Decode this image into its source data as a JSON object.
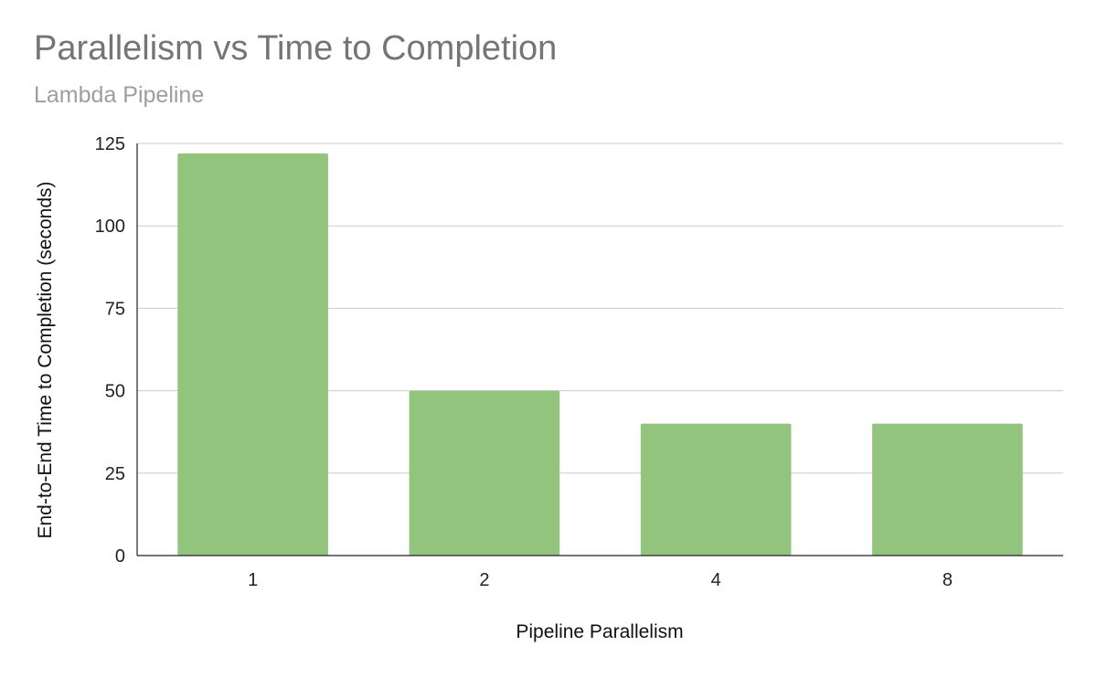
{
  "chart_data": {
    "type": "bar",
    "title": "Parallelism vs Time to Completion",
    "subtitle": "Lambda Pipeline",
    "xlabel": "Pipeline Parallelism",
    "ylabel": "End-to-End Time to Completion (seconds)",
    "categories": [
      "1",
      "2",
      "4",
      "8"
    ],
    "values": [
      122,
      50,
      40,
      40
    ],
    "ylim": [
      0,
      125
    ],
    "yticks": [
      0,
      25,
      50,
      75,
      100,
      125
    ],
    "grid": true,
    "legend": "none",
    "bar_color": "#93c47d",
    "grid_color": "#cccccc",
    "axis_color": "#222222"
  }
}
